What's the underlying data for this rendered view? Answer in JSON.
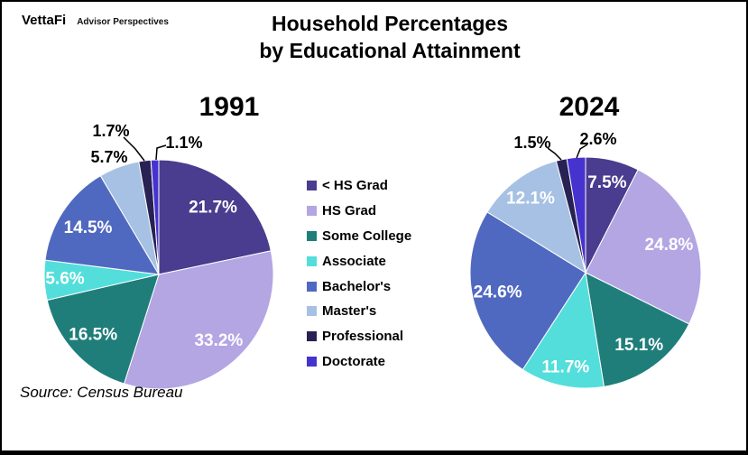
{
  "logo": {
    "brand": "VettaFi",
    "tagline": "Advisor Perspectives"
  },
  "title": {
    "line1": "Household Percentages",
    "line2": "by Educational Attainment"
  },
  "source": "Source: Census Bureau",
  "colors": {
    "lt_hs_grad": "#4a3c8e",
    "hs_grad": "#b3a6e3",
    "some_college": "#1f7e7a",
    "associate": "#53dedb",
    "bachelors": "#5069c0",
    "masters": "#a6c1e4",
    "professional": "#272253",
    "doctorate": "#4633cf"
  },
  "legend": {
    "position": "center-between-pies",
    "items": [
      {
        "label": "< HS Grad",
        "color": "#4a3c8e"
      },
      {
        "label": "HS Grad",
        "color": "#b3a6e3"
      },
      {
        "label": "Some College",
        "color": "#1f7e7a"
      },
      {
        "label": "Associate",
        "color": "#53dedb"
      },
      {
        "label": "Bachelor's",
        "color": "#5069c0"
      },
      {
        "label": "Master's",
        "color": "#a6c1e4"
      },
      {
        "label": "Professional",
        "color": "#272253"
      },
      {
        "label": "Doctorate",
        "color": "#4633cf"
      }
    ]
  },
  "chart_data": [
    {
      "type": "pie",
      "title": "1991",
      "start_angle": "12-o-clock",
      "direction": "clockwise",
      "categories": [
        "< HS Grad",
        "HS Grad",
        "Some College",
        "Associate",
        "Bachelor's",
        "Master's",
        "Professional",
        "Doctorate"
      ],
      "values": [
        21.7,
        33.2,
        16.5,
        5.6,
        14.5,
        5.7,
        1.7,
        1.1
      ],
      "labels": [
        "21.7%",
        "33.2%",
        "16.5%",
        "5.6%",
        "14.5%",
        "5.7%",
        "1.7%",
        "1.1%"
      ],
      "colors": [
        "#4a3c8e",
        "#b3a6e3",
        "#1f7e7a",
        "#53dedb",
        "#5069c0",
        "#a6c1e4",
        "#272253",
        "#4633cf"
      ],
      "label_placement": [
        "inside",
        "inside",
        "inside",
        "inside",
        "inside",
        "outside",
        "outside-leader",
        "outside-leader"
      ]
    },
    {
      "type": "pie",
      "title": "2024",
      "start_angle": "12-o-clock",
      "direction": "clockwise",
      "categories": [
        "< HS Grad",
        "HS Grad",
        "Some College",
        "Associate",
        "Bachelor's",
        "Master's",
        "Professional",
        "Doctorate"
      ],
      "values": [
        7.5,
        24.8,
        15.1,
        11.7,
        24.6,
        12.1,
        1.5,
        2.6
      ],
      "labels": [
        "7.5%",
        "24.8%",
        "15.1%",
        "11.7%",
        "24.6%",
        "12.1%",
        "1.5%",
        "2.6%"
      ],
      "colors": [
        "#4a3c8e",
        "#b3a6e3",
        "#1f7e7a",
        "#53dedb",
        "#5069c0",
        "#a6c1e4",
        "#272253",
        "#4633cf"
      ],
      "label_placement": [
        "inside",
        "inside",
        "inside",
        "inside",
        "inside",
        "inside",
        "outside-leader",
        "outside-leader"
      ]
    }
  ]
}
